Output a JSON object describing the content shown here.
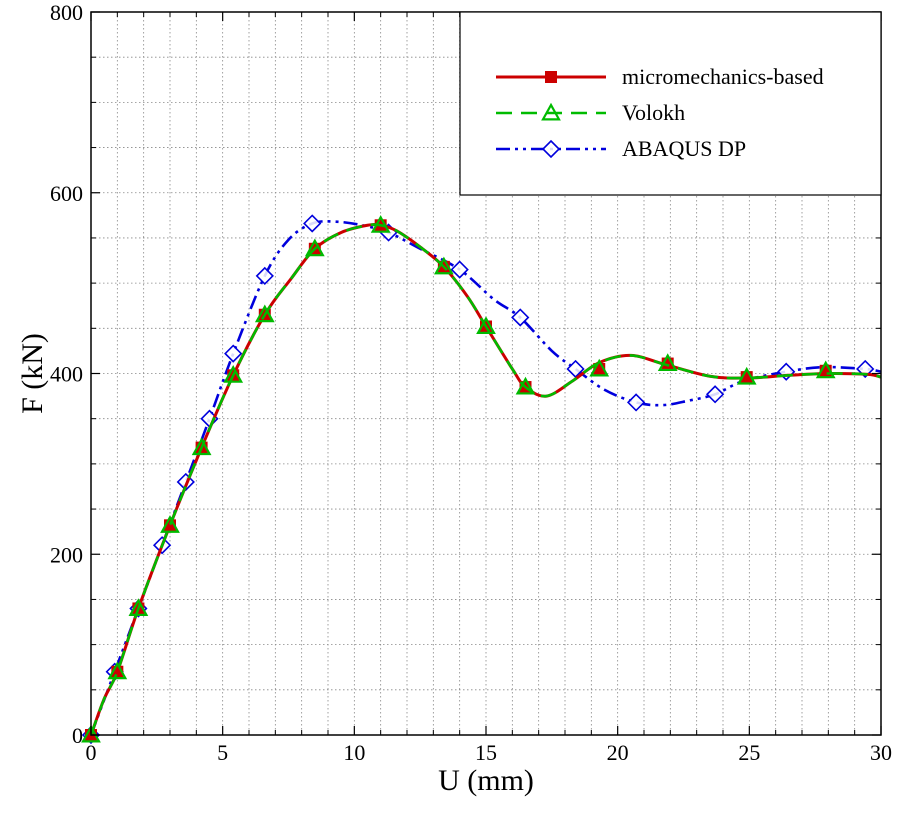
{
  "chart_data": {
    "type": "line",
    "title": "",
    "xlabel": "U (mm)",
    "ylabel": "F (kN)",
    "xlim": [
      0,
      30
    ],
    "ylim": [
      0,
      800
    ],
    "x_ticks": [
      "0",
      "5",
      "10",
      "15",
      "20",
      "25",
      "30"
    ],
    "y_ticks": [
      "0",
      "200",
      "400",
      "600",
      "800"
    ],
    "grid": true,
    "legend_position": "top-right",
    "series": [
      {
        "name": "micromechanics-based",
        "color": "#cc0000",
        "line_style": "solid",
        "marker": "square",
        "x": [
          0,
          0.5,
          1,
          1.8,
          3,
          4.2,
          5.4,
          6.6,
          7.6,
          8.5,
          9.5,
          10.5,
          11,
          11.6,
          12.5,
          13.4,
          14.3,
          15,
          16,
          16.5,
          17.3,
          18.3,
          19.3,
          20.5,
          21.8,
          23.5,
          24.9,
          26.5,
          28,
          29.5,
          30
        ],
        "y": [
          0,
          40,
          70,
          140,
          232,
          318,
          398,
          465,
          505,
          538,
          556,
          564,
          564,
          558,
          540,
          518,
          485,
          452,
          405,
          385,
          375,
          392,
          412,
          420,
          410,
          397,
          395,
          398,
          400,
          399,
          396
        ],
        "markers": [
          [
            0,
            0
          ],
          [
            1,
            70
          ],
          [
            1.8,
            140
          ],
          [
            3,
            232
          ],
          [
            4.2,
            318
          ],
          [
            5.4,
            398
          ],
          [
            6.6,
            465
          ],
          [
            8.5,
            538
          ],
          [
            11,
            564
          ],
          [
            13.4,
            518
          ],
          [
            15,
            452
          ],
          [
            16.5,
            385
          ],
          [
            19.3,
            405
          ],
          [
            21.9,
            411
          ],
          [
            24.9,
            396
          ],
          [
            27.9,
            403
          ]
        ]
      },
      {
        "name": "Volokh",
        "color": "#00bb00",
        "line_style": "dashed",
        "marker": "triangle",
        "x": [
          0,
          0.5,
          1,
          1.8,
          3,
          4.2,
          5.4,
          6.6,
          7.6,
          8.5,
          9.5,
          10.5,
          11,
          11.6,
          12.5,
          13.4,
          14.3,
          15,
          16,
          16.5,
          17.3,
          18.3,
          19.3,
          20.5,
          21.8,
          23.5,
          24.9,
          26.5,
          28,
          29.5,
          30
        ],
        "y": [
          0,
          40,
          70,
          140,
          232,
          318,
          398,
          465,
          505,
          538,
          556,
          564,
          564,
          558,
          540,
          518,
          485,
          452,
          405,
          385,
          375,
          392,
          412,
          420,
          410,
          397,
          395,
          398,
          400,
          399,
          396
        ],
        "markers": [
          [
            0,
            0
          ],
          [
            1,
            70
          ],
          [
            1.8,
            140
          ],
          [
            3,
            232
          ],
          [
            4.2,
            318
          ],
          [
            5.4,
            398
          ],
          [
            6.6,
            465
          ],
          [
            8.5,
            538
          ],
          [
            11,
            564
          ],
          [
            13.4,
            518
          ],
          [
            15,
            452
          ],
          [
            16.5,
            385
          ],
          [
            19.3,
            405
          ],
          [
            21.9,
            411
          ],
          [
            24.9,
            396
          ],
          [
            27.9,
            403
          ]
        ]
      },
      {
        "name": "ABAQUS DP",
        "color": "#0000dd",
        "line_style": "dashdotdot",
        "marker": "diamond",
        "x": [
          0,
          0.9,
          1.8,
          2.7,
          3.6,
          4.5,
          5.4,
          6.6,
          7.5,
          8.4,
          9.3,
          10.3,
          11.3,
          12.5,
          14,
          15.3,
          16.3,
          17.5,
          18.4,
          19.5,
          20.7,
          21.7,
          22.7,
          23.7,
          24.8,
          26.4,
          27.8,
          29.4,
          30
        ],
        "y": [
          0,
          70,
          140,
          210,
          280,
          350,
          422,
          508,
          548,
          566,
          568,
          564,
          556,
          538,
          515,
          482,
          462,
          425,
          405,
          382,
          368,
          365,
          370,
          377,
          392,
          402,
          407,
          405,
          402
        ],
        "markers": [
          [
            0,
            0
          ],
          [
            0.9,
            70
          ],
          [
            1.8,
            140
          ],
          [
            2.7,
            210
          ],
          [
            3.6,
            280
          ],
          [
            4.5,
            350
          ],
          [
            5.4,
            422
          ],
          [
            6.6,
            508
          ],
          [
            8.4,
            566
          ],
          [
            11.3,
            556
          ],
          [
            14,
            515
          ],
          [
            16.3,
            462
          ],
          [
            18.4,
            405
          ],
          [
            20.7,
            368
          ],
          [
            23.7,
            377
          ],
          [
            26.4,
            402
          ],
          [
            29.4,
            405
          ]
        ]
      }
    ]
  }
}
